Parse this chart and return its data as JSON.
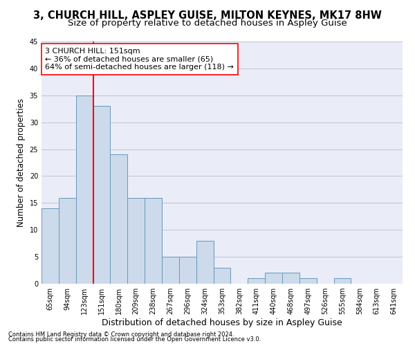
{
  "title": "3, CHURCH HILL, ASPLEY GUISE, MILTON KEYNES, MK17 8HW",
  "subtitle": "Size of property relative to detached houses in Aspley Guise",
  "xlabel": "Distribution of detached houses by size in Aspley Guise",
  "ylabel": "Number of detached properties",
  "footnote1": "Contains HM Land Registry data © Crown copyright and database right 2024.",
  "footnote2": "Contains public sector information licensed under the Open Government Licence v3.0.",
  "bin_labels": [
    "65sqm",
    "94sqm",
    "123sqm",
    "151sqm",
    "180sqm",
    "209sqm",
    "238sqm",
    "267sqm",
    "296sqm",
    "324sqm",
    "353sqm",
    "382sqm",
    "411sqm",
    "440sqm",
    "468sqm",
    "497sqm",
    "526sqm",
    "555sqm",
    "584sqm",
    "613sqm",
    "641sqm"
  ],
  "bar_values": [
    14,
    16,
    35,
    33,
    24,
    16,
    16,
    5,
    5,
    8,
    3,
    0,
    1,
    2,
    2,
    1,
    0,
    1,
    0,
    0,
    0
  ],
  "bar_color": "#ccdaeb",
  "bar_edgecolor": "#6699bb",
  "bar_linewidth": 0.7,
  "vline_index": 3,
  "vline_color": "red",
  "vline_linewidth": 1.5,
  "annotation_line1": "3 CHURCH HILL: 151sqm",
  "annotation_line2": "← 36% of detached houses are smaller (65)",
  "annotation_line3": "64% of semi-detached houses are larger (118) →",
  "annotation_box_color": "white",
  "annotation_box_edgecolor": "red",
  "ylim": [
    0,
    45
  ],
  "yticks": [
    0,
    5,
    10,
    15,
    20,
    25,
    30,
    35,
    40,
    45
  ],
  "grid_color": "#bbbbcc",
  "bg_color": "#eaecf8",
  "title_fontsize": 10.5,
  "subtitle_fontsize": 9.5,
  "xlabel_fontsize": 9,
  "ylabel_fontsize": 8.5,
  "tick_fontsize": 7,
  "annot_fontsize": 8,
  "footnote_fontsize": 6
}
